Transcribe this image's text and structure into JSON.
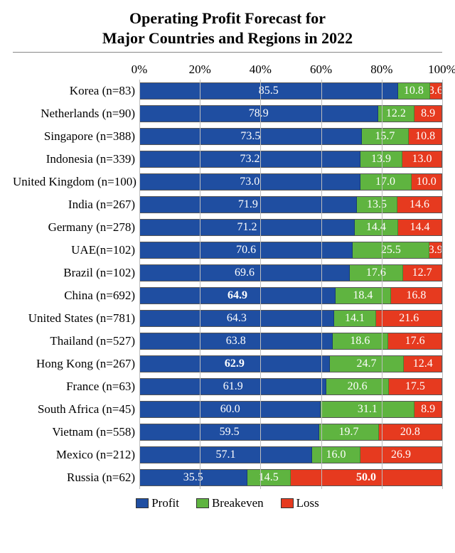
{
  "chart": {
    "type": "stacked-bar-horizontal",
    "title_line1": "Operating Profit Forecast for",
    "title_line2": "Major Countries and Regions in 2022",
    "title_fontsize": 22,
    "label_fontsize": 17,
    "value_fontsize": 16,
    "background_color": "#ffffff",
    "grid_color": "#bdbdbd",
    "axis": {
      "min": 0,
      "max": 100,
      "ticks": [
        0,
        20,
        40,
        60,
        80,
        100
      ],
      "tick_labels": [
        "0%",
        "20%",
        "40%",
        "60%",
        "80%",
        "100%"
      ]
    },
    "series": [
      {
        "key": "profit",
        "label": "Profit",
        "color": "#1f4ea1"
      },
      {
        "key": "breakeven",
        "label": "Breakeven",
        "color": "#5fb440"
      },
      {
        "key": "loss",
        "label": "Loss",
        "color": "#e63a1f"
      }
    ],
    "bold_rows": [
      "China (n=692)",
      "Hong Kong (n=267)"
    ],
    "bold_cells": [
      {
        "row": "China (n=692)",
        "key": "profit"
      },
      {
        "row": "Hong Kong (n=267)",
        "key": "profit"
      },
      {
        "row": "Russia (n=62)",
        "key": "loss"
      }
    ],
    "rows": [
      {
        "label": "Korea (n=83)",
        "profit": 85.5,
        "breakeven": 10.8,
        "loss": 3.6
      },
      {
        "label": "Netherlands (n=90)",
        "profit": 78.9,
        "breakeven": 12.2,
        "loss": 8.9
      },
      {
        "label": "Singapore (n=388)",
        "profit": 73.5,
        "breakeven": 15.7,
        "loss": 10.8
      },
      {
        "label": "Indonesia (n=339)",
        "profit": 73.2,
        "breakeven": 13.9,
        "loss": 13.0
      },
      {
        "label": "United Kingdom (n=100)",
        "profit": 73.0,
        "breakeven": 17.0,
        "loss": 10.0
      },
      {
        "label": "India (n=267)",
        "profit": 71.9,
        "breakeven": 13.5,
        "loss": 14.6
      },
      {
        "label": "Germany (n=278)",
        "profit": 71.2,
        "breakeven": 14.4,
        "loss": 14.4
      },
      {
        "label": "UAE(n=102)",
        "profit": 70.6,
        "breakeven": 25.5,
        "loss": 3.9
      },
      {
        "label": "Brazil (n=102)",
        "profit": 69.6,
        "breakeven": 17.6,
        "loss": 12.7
      },
      {
        "label": "China (n=692)",
        "profit": 64.9,
        "breakeven": 18.4,
        "loss": 16.8
      },
      {
        "label": "United States (n=781)",
        "profit": 64.3,
        "breakeven": 14.1,
        "loss": 21.6
      },
      {
        "label": "Thailand (n=527)",
        "profit": 63.8,
        "breakeven": 18.6,
        "loss": 17.6
      },
      {
        "label": "Hong Kong (n=267)",
        "profit": 62.9,
        "breakeven": 24.7,
        "loss": 12.4
      },
      {
        "label": "France (n=63)",
        "profit": 61.9,
        "breakeven": 20.6,
        "loss": 17.5
      },
      {
        "label": "South Africa (n=45)",
        "profit": 60.0,
        "breakeven": 31.1,
        "loss": 8.9
      },
      {
        "label": "Vietnam (n=558)",
        "profit": 59.5,
        "breakeven": 19.7,
        "loss": 20.8
      },
      {
        "label": "Mexico (n=212)",
        "profit": 57.1,
        "breakeven": 16.0,
        "loss": 26.9
      },
      {
        "label": "Russia (n=62)",
        "profit": 35.5,
        "breakeven": 14.5,
        "loss": 50.0
      }
    ]
  }
}
